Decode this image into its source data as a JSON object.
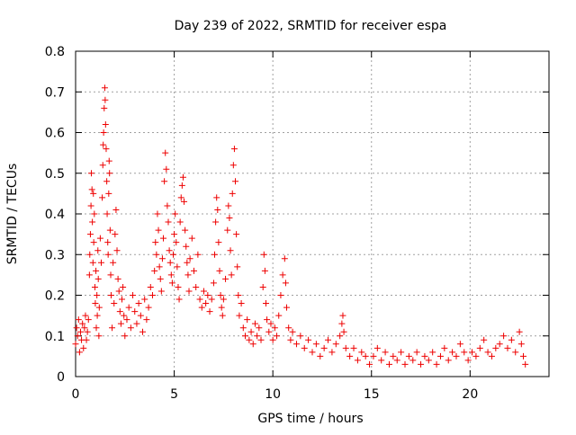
{
  "chart_data": {
    "type": "scatter",
    "title": "Day 239 of 2022, SRMTID for receiver espa",
    "xlabel": "GPS time / hours",
    "ylabel": "SRMTID / TECUs",
    "xlim": [
      0,
      24
    ],
    "ylim": [
      0,
      0.8
    ],
    "xticks": [
      0,
      5,
      10,
      15,
      20
    ],
    "yticks": [
      0,
      0.1,
      0.2,
      0.3,
      0.4,
      0.5,
      0.6,
      0.7,
      0.8
    ],
    "xtick_labels": [
      "0",
      "5",
      "10",
      "15",
      "20"
    ],
    "ytick_labels": [
      "0",
      "0.1",
      "0.2",
      "0.3",
      "0.4",
      "0.5",
      "0.6",
      "0.7",
      "0.8"
    ],
    "grid": true,
    "marker": "+",
    "color": "#ee0000",
    "series": [
      {
        "name": "SRMTID espa",
        "points": [
          [
            0.0,
            0.08
          ],
          [
            0.05,
            0.12
          ],
          [
            0.1,
            0.1
          ],
          [
            0.15,
            0.14
          ],
          [
            0.2,
            0.06
          ],
          [
            0.25,
            0.11
          ],
          [
            0.3,
            0.09
          ],
          [
            0.35,
            0.13
          ],
          [
            0.4,
            0.07
          ],
          [
            0.45,
            0.12
          ],
          [
            0.5,
            0.15
          ],
          [
            0.55,
            0.09
          ],
          [
            0.6,
            0.11
          ],
          [
            0.65,
            0.14
          ],
          [
            0.7,
            0.25
          ],
          [
            0.72,
            0.3
          ],
          [
            0.75,
            0.35
          ],
          [
            0.78,
            0.42
          ],
          [
            0.8,
            0.5
          ],
          [
            0.83,
            0.46
          ],
          [
            0.85,
            0.38
          ],
          [
            0.88,
            0.28
          ],
          [
            0.9,
            0.45
          ],
          [
            0.92,
            0.33
          ],
          [
            0.95,
            0.4
          ],
          [
            0.98,
            0.22
          ],
          [
            1.0,
            0.18
          ],
          [
            1.03,
            0.26
          ],
          [
            1.05,
            0.12
          ],
          [
            1.08,
            0.2
          ],
          [
            1.1,
            0.15
          ],
          [
            1.13,
            0.31
          ],
          [
            1.15,
            0.24
          ],
          [
            1.18,
            0.1
          ],
          [
            1.2,
            0.17
          ],
          [
            1.25,
            0.34
          ],
          [
            1.3,
            0.28
          ],
          [
            1.35,
            0.44
          ],
          [
            1.38,
            0.52
          ],
          [
            1.4,
            0.57
          ],
          [
            1.42,
            0.6
          ],
          [
            1.45,
            0.66
          ],
          [
            1.48,
            0.71
          ],
          [
            1.5,
            0.68
          ],
          [
            1.52,
            0.62
          ],
          [
            1.55,
            0.56
          ],
          [
            1.58,
            0.48
          ],
          [
            1.6,
            0.4
          ],
          [
            1.63,
            0.33
          ],
          [
            1.65,
            0.3
          ],
          [
            1.68,
            0.45
          ],
          [
            1.7,
            0.53
          ],
          [
            1.72,
            0.5
          ],
          [
            1.75,
            0.36
          ],
          [
            1.78,
            0.25
          ],
          [
            1.8,
            0.2
          ],
          [
            1.85,
            0.12
          ],
          [
            1.9,
            0.28
          ],
          [
            1.95,
            0.18
          ],
          [
            2.0,
            0.35
          ],
          [
            2.05,
            0.41
          ],
          [
            2.1,
            0.31
          ],
          [
            2.15,
            0.24
          ],
          [
            2.2,
            0.21
          ],
          [
            2.25,
            0.16
          ],
          [
            2.3,
            0.13
          ],
          [
            2.35,
            0.19
          ],
          [
            2.4,
            0.22
          ],
          [
            2.45,
            0.15
          ],
          [
            2.5,
            0.1
          ],
          [
            2.6,
            0.14
          ],
          [
            2.7,
            0.17
          ],
          [
            2.8,
            0.12
          ],
          [
            2.9,
            0.2
          ],
          [
            3.0,
            0.16
          ],
          [
            3.1,
            0.13
          ],
          [
            3.2,
            0.18
          ],
          [
            3.3,
            0.15
          ],
          [
            3.4,
            0.11
          ],
          [
            3.5,
            0.19
          ],
          [
            3.6,
            0.14
          ],
          [
            3.7,
            0.17
          ],
          [
            3.8,
            0.22
          ],
          [
            3.9,
            0.2
          ],
          [
            4.0,
            0.26
          ],
          [
            4.05,
            0.33
          ],
          [
            4.1,
            0.3
          ],
          [
            4.15,
            0.4
          ],
          [
            4.2,
            0.36
          ],
          [
            4.25,
            0.27
          ],
          [
            4.3,
            0.24
          ],
          [
            4.35,
            0.21
          ],
          [
            4.4,
            0.29
          ],
          [
            4.45,
            0.34
          ],
          [
            4.5,
            0.48
          ],
          [
            4.55,
            0.55
          ],
          [
            4.6,
            0.51
          ],
          [
            4.65,
            0.42
          ],
          [
            4.7,
            0.38
          ],
          [
            4.75,
            0.31
          ],
          [
            4.8,
            0.28
          ],
          [
            4.85,
            0.25
          ],
          [
            4.9,
            0.23
          ],
          [
            4.95,
            0.3
          ],
          [
            5.0,
            0.35
          ],
          [
            5.05,
            0.4
          ],
          [
            5.1,
            0.33
          ],
          [
            5.15,
            0.27
          ],
          [
            5.2,
            0.22
          ],
          [
            5.25,
            0.19
          ],
          [
            5.3,
            0.38
          ],
          [
            5.35,
            0.44
          ],
          [
            5.4,
            0.47
          ],
          [
            5.45,
            0.49
          ],
          [
            5.5,
            0.43
          ],
          [
            5.55,
            0.36
          ],
          [
            5.6,
            0.32
          ],
          [
            5.65,
            0.28
          ],
          [
            5.7,
            0.25
          ],
          [
            5.75,
            0.21
          ],
          [
            5.8,
            0.29
          ],
          [
            5.9,
            0.34
          ],
          [
            6.0,
            0.26
          ],
          [
            6.1,
            0.22
          ],
          [
            6.2,
            0.3
          ],
          [
            6.3,
            0.19
          ],
          [
            6.4,
            0.17
          ],
          [
            6.5,
            0.21
          ],
          [
            6.6,
            0.18
          ],
          [
            6.7,
            0.2
          ],
          [
            6.8,
            0.16
          ],
          [
            6.9,
            0.19
          ],
          [
            7.0,
            0.23
          ],
          [
            7.05,
            0.3
          ],
          [
            7.1,
            0.38
          ],
          [
            7.15,
            0.44
          ],
          [
            7.2,
            0.41
          ],
          [
            7.25,
            0.33
          ],
          [
            7.3,
            0.26
          ],
          [
            7.35,
            0.2
          ],
          [
            7.4,
            0.17
          ],
          [
            7.45,
            0.15
          ],
          [
            7.5,
            0.19
          ],
          [
            7.6,
            0.24
          ],
          [
            7.7,
            0.36
          ],
          [
            7.75,
            0.42
          ],
          [
            7.8,
            0.39
          ],
          [
            7.85,
            0.31
          ],
          [
            7.9,
            0.25
          ],
          [
            7.95,
            0.45
          ],
          [
            8.0,
            0.52
          ],
          [
            8.05,
            0.56
          ],
          [
            8.1,
            0.48
          ],
          [
            8.15,
            0.35
          ],
          [
            8.2,
            0.27
          ],
          [
            8.25,
            0.2
          ],
          [
            8.3,
            0.15
          ],
          [
            8.4,
            0.18
          ],
          [
            8.5,
            0.12
          ],
          [
            8.6,
            0.1
          ],
          [
            8.7,
            0.14
          ],
          [
            8.8,
            0.09
          ],
          [
            8.9,
            0.11
          ],
          [
            9.0,
            0.08
          ],
          [
            9.1,
            0.13
          ],
          [
            9.2,
            0.1
          ],
          [
            9.3,
            0.12
          ],
          [
            9.4,
            0.09
          ],
          [
            9.5,
            0.22
          ],
          [
            9.55,
            0.3
          ],
          [
            9.6,
            0.26
          ],
          [
            9.65,
            0.18
          ],
          [
            9.7,
            0.14
          ],
          [
            9.8,
            0.11
          ],
          [
            9.9,
            0.13
          ],
          [
            10.0,
            0.09
          ],
          [
            10.1,
            0.12
          ],
          [
            10.2,
            0.1
          ],
          [
            10.3,
            0.15
          ],
          [
            10.4,
            0.2
          ],
          [
            10.5,
            0.25
          ],
          [
            10.6,
            0.29
          ],
          [
            10.65,
            0.23
          ],
          [
            10.7,
            0.17
          ],
          [
            10.8,
            0.12
          ],
          [
            10.9,
            0.09
          ],
          [
            11.0,
            0.11
          ],
          [
            11.2,
            0.08
          ],
          [
            11.4,
            0.1
          ],
          [
            11.6,
            0.07
          ],
          [
            11.8,
            0.09
          ],
          [
            12.0,
            0.06
          ],
          [
            12.2,
            0.08
          ],
          [
            12.4,
            0.05
          ],
          [
            12.6,
            0.07
          ],
          [
            12.8,
            0.09
          ],
          [
            13.0,
            0.06
          ],
          [
            13.2,
            0.08
          ],
          [
            13.4,
            0.1
          ],
          [
            13.5,
            0.13
          ],
          [
            13.55,
            0.15
          ],
          [
            13.6,
            0.11
          ],
          [
            13.7,
            0.07
          ],
          [
            13.9,
            0.05
          ],
          [
            14.1,
            0.07
          ],
          [
            14.3,
            0.04
          ],
          [
            14.5,
            0.06
          ],
          [
            14.7,
            0.05
          ],
          [
            14.9,
            0.03
          ],
          [
            15.1,
            0.05
          ],
          [
            15.3,
            0.07
          ],
          [
            15.5,
            0.04
          ],
          [
            15.7,
            0.06
          ],
          [
            15.9,
            0.03
          ],
          [
            16.1,
            0.05
          ],
          [
            16.3,
            0.04
          ],
          [
            16.5,
            0.06
          ],
          [
            16.7,
            0.03
          ],
          [
            16.9,
            0.05
          ],
          [
            17.1,
            0.04
          ],
          [
            17.3,
            0.06
          ],
          [
            17.5,
            0.03
          ],
          [
            17.7,
            0.05
          ],
          [
            17.9,
            0.04
          ],
          [
            18.1,
            0.06
          ],
          [
            18.3,
            0.03
          ],
          [
            18.5,
            0.05
          ],
          [
            18.7,
            0.07
          ],
          [
            18.9,
            0.04
          ],
          [
            19.1,
            0.06
          ],
          [
            19.3,
            0.05
          ],
          [
            19.5,
            0.08
          ],
          [
            19.7,
            0.06
          ],
          [
            19.9,
            0.04
          ],
          [
            20.1,
            0.06
          ],
          [
            20.3,
            0.05
          ],
          [
            20.5,
            0.07
          ],
          [
            20.7,
            0.09
          ],
          [
            20.9,
            0.06
          ],
          [
            21.1,
            0.05
          ],
          [
            21.3,
            0.07
          ],
          [
            21.5,
            0.08
          ],
          [
            21.7,
            0.1
          ],
          [
            21.9,
            0.07
          ],
          [
            22.1,
            0.09
          ],
          [
            22.3,
            0.06
          ],
          [
            22.5,
            0.11
          ],
          [
            22.6,
            0.08
          ],
          [
            22.7,
            0.05
          ],
          [
            22.8,
            0.03
          ]
        ]
      }
    ]
  }
}
